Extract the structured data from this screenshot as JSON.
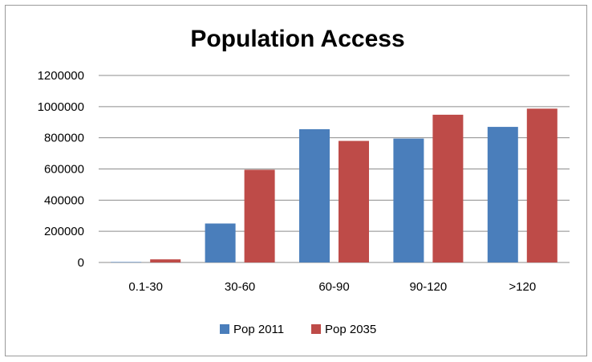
{
  "chart_data": {
    "type": "bar",
    "title": "Population Access",
    "xlabel": "",
    "ylabel": "",
    "categories": [
      "0.1-30",
      "30-60",
      "60-90",
      "90-120",
      ">120"
    ],
    "series": [
      {
        "name": "Pop 2011",
        "color": "#4a7ebb",
        "values": [
          3000,
          250000,
          855000,
          795000,
          870000
        ]
      },
      {
        "name": "Pop 2035",
        "color": "#be4b48",
        "values": [
          20000,
          595000,
          780000,
          948000,
          987000
        ]
      }
    ],
    "ylim": [
      0,
      1200000
    ],
    "yticks": [
      "0",
      "200000",
      "400000",
      "600000",
      "800000",
      "1000000",
      "1200000"
    ],
    "grid": true,
    "legend": "bottom"
  }
}
